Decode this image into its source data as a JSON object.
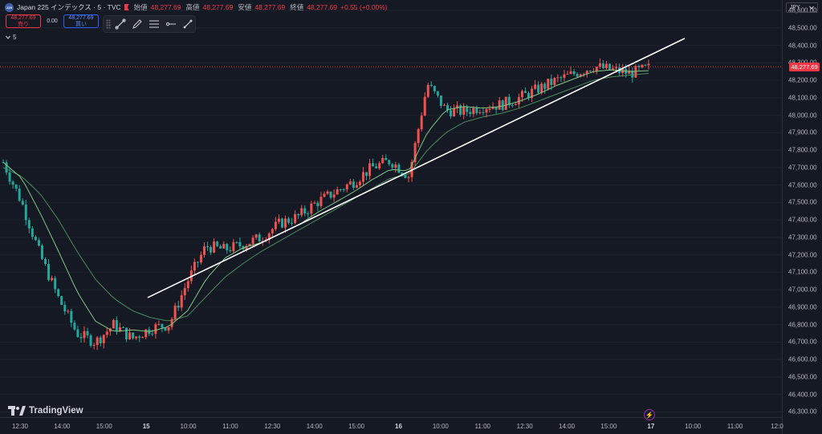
{
  "header": {
    "logo_text": "225",
    "title": "Japan 225 インデックス · 5 · TVC",
    "open_label": "始値",
    "open": "48,277.69",
    "high_label": "高値",
    "high": "48,277.69",
    "low_label": "安値",
    "low": "48,277.69",
    "close_label": "終値",
    "close": "48,277.69",
    "change": "+0.55 (+0.00%)"
  },
  "trade": {
    "sell_price": "48,277.69",
    "sell_label": "売り",
    "spread": "0.00",
    "buy_price": "48,277.69",
    "buy_label": "買い"
  },
  "indicator": {
    "label": "5"
  },
  "currency": {
    "label": "JPY"
  },
  "price_badge": "48,277.69",
  "logo": {
    "text": "TradingView"
  },
  "lightning_icon": "lightning-icon",
  "colors": {
    "up": "#ef5350",
    "down": "#26a69a",
    "ma_fast": "#81c784",
    "ma_slow": "#4a8c5c",
    "trend": "#ffffff"
  },
  "chart_data": {
    "type": "candlestick",
    "symbol": "Japan 225",
    "interval": "5",
    "y_ticks": [
      48600,
      48500,
      48400,
      48300,
      48200,
      48100,
      48000,
      47900,
      47800,
      47700,
      47600,
      47500,
      47400,
      47300,
      47200,
      47100,
      47000,
      46900,
      46800,
      46700,
      46600,
      46500,
      46400,
      46300
    ],
    "y_tick_labels": [
      "48,600.00",
      "48,500.00",
      "48,400.00",
      "48,300.00",
      "48,200.00",
      "48,100.00",
      "48,000.00",
      "47,900.00",
      "47,800.00",
      "47,700.00",
      "47,600.00",
      "47,500.00",
      "47,400.00",
      "47,300.00",
      "47,200.00",
      "47,100.00",
      "47,000.00",
      "46,900.00",
      "46,800.00",
      "46,700.00",
      "46,600.00",
      "46,500.00",
      "46,400.00",
      "46,300.00"
    ],
    "ylim": [
      46270,
      48660
    ],
    "x_ticks": [
      {
        "label": "12:30",
        "day": false
      },
      {
        "label": "14:00",
        "day": false
      },
      {
        "label": "15:00",
        "day": false
      },
      {
        "label": "15",
        "day": true
      },
      {
        "label": "10:00",
        "day": false
      },
      {
        "label": "11:00",
        "day": false
      },
      {
        "label": "12:30",
        "day": false
      },
      {
        "label": "14:00",
        "day": false
      },
      {
        "label": "15:00",
        "day": false
      },
      {
        "label": "16",
        "day": true
      },
      {
        "label": "10:00",
        "day": false
      },
      {
        "label": "11:00",
        "day": false
      },
      {
        "label": "12:30",
        "day": false
      },
      {
        "label": "14:00",
        "day": false
      },
      {
        "label": "15:00",
        "day": false
      },
      {
        "label": "17",
        "day": true
      },
      {
        "label": "10:00",
        "day": false
      },
      {
        "label": "11:00",
        "day": false
      },
      {
        "label": "12:0",
        "day": false
      }
    ],
    "last_price": 48277.69,
    "price_path": [
      47730,
      47500,
      47200,
      46950,
      46750,
      46700,
      46800,
      46720,
      46780,
      46800,
      47050,
      47250,
      47230,
      47260,
      47300,
      47380,
      47420,
      47500,
      47560,
      47620,
      47700,
      47740,
      47650,
      48180,
      48030,
      48020,
      48050,
      48060,
      48100,
      48150,
      48200,
      48240,
      48280,
      48260,
      48240,
      48270
    ],
    "ma_fast": [
      47730,
      47640,
      47440,
      47220,
      46990,
      46820,
      46760,
      46770,
      46760,
      46790,
      46880,
      47060,
      47180,
      47240,
      47270,
      47320,
      47370,
      47440,
      47500,
      47560,
      47630,
      47690,
      47680,
      47900,
      48030,
      48050,
      48040,
      48050,
      48080,
      48120,
      48170,
      48210,
      48250,
      48260,
      48250,
      48255
    ],
    "ma_slow": [
      47700,
      47650,
      47550,
      47400,
      47220,
      47060,
      46950,
      46880,
      46840,
      46820,
      46850,
      46960,
      47070,
      47150,
      47220,
      47280,
      47340,
      47400,
      47460,
      47520,
      47580,
      47640,
      47660,
      47800,
      47900,
      47960,
      47990,
      48010,
      48040,
      48080,
      48120,
      48160,
      48200,
      48220,
      48230,
      48240
    ],
    "trendline": {
      "start_price": 46955,
      "end_price": 48440
    }
  }
}
